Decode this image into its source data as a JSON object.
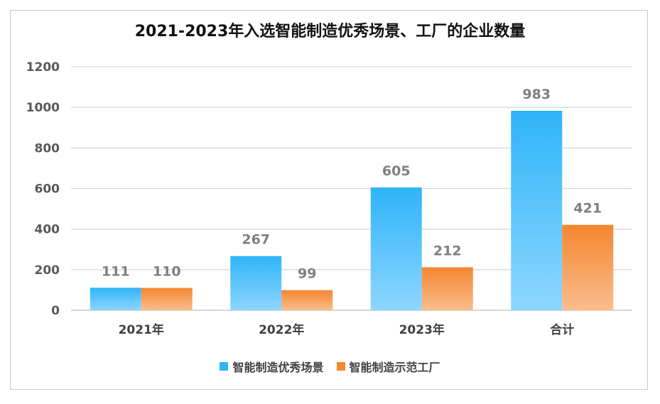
{
  "chart_data": {
    "type": "bar",
    "title": "2021-2023年入选智能制造优秀场景、工厂的企业数量",
    "categories": [
      "2021年",
      "2022年",
      "2023年",
      "合计"
    ],
    "series": [
      {
        "name": "智能制造优秀场景",
        "values": [
          111,
          267,
          605,
          983
        ],
        "color_top": "#2fb4f8",
        "color_bottom": "#8ed6ff"
      },
      {
        "name": "智能制造示范工厂",
        "values": [
          110,
          99,
          212,
          421
        ],
        "color_top": "#f4862e",
        "color_bottom": "#fbbd8e"
      }
    ],
    "ylim": [
      0,
      1200
    ],
    "yticks": [
      0,
      200,
      400,
      600,
      800,
      1000,
      1200
    ],
    "xlabel": "",
    "ylabel": "",
    "grid": true,
    "legend_position": "bottom",
    "data_labels": true
  }
}
